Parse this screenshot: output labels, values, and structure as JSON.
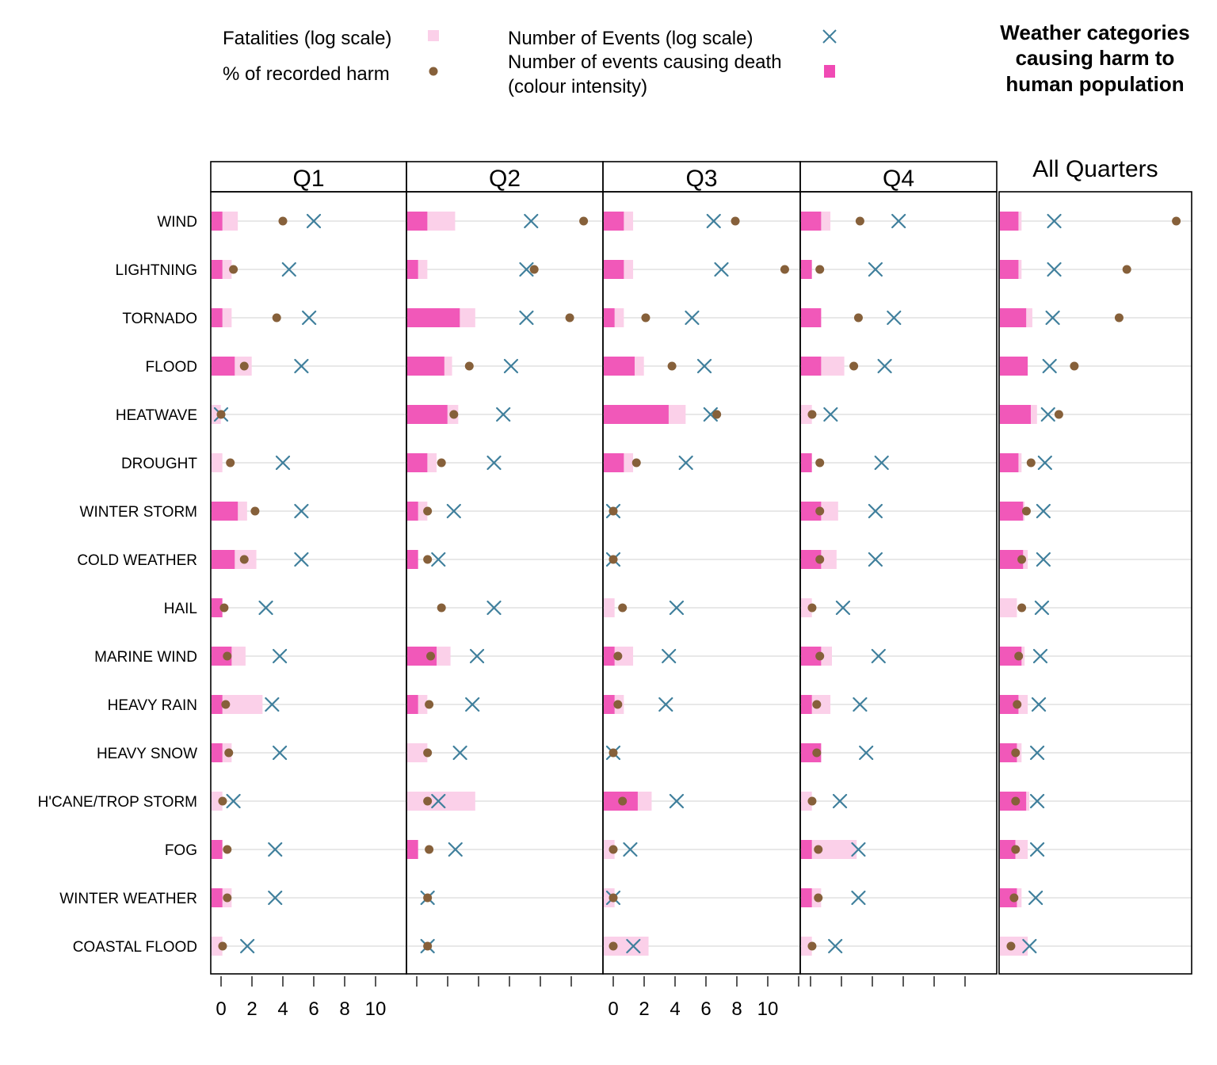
{
  "legend": {
    "fatalities": "Fatalities (log scale)",
    "pct_harm": "% of recorded harm",
    "events": "Number of Events (log scale)",
    "death_events_line1": "Number of events causing death",
    "death_events_line2": "(colour intensity)"
  },
  "title_lines": [
    "Weather categories",
    "causing harm to",
    "human population"
  ],
  "colors": {
    "bar_dark": "#f04ab4",
    "bar_light": "#fbd0e9",
    "pct_dot": "#86603a",
    "event_x": "#3f7f9c",
    "grid": "#d9d9d9"
  },
  "chart_data": {
    "type": "dot-bar panel",
    "categories": [
      "WIND",
      "LIGHTNING",
      "TORNADO",
      "FLOOD",
      "HEATWAVE",
      "DROUGHT",
      "WINTER STORM",
      "COLD WEATHER",
      "HAIL",
      "MARINE WIND",
      "HEAVY RAIN",
      "HEAVY SNOW",
      "H'CANE/TROP STORM",
      "FOG",
      "WINTER WEATHER",
      "COASTAL FLOOD"
    ],
    "x_ticks": [
      "0",
      "2",
      "4",
      "6",
      "8",
      "10"
    ],
    "xlim": [
      -0.6,
      11.8
    ],
    "panels": [
      {
        "title": "Q1",
        "fatal_light": [
          1.7,
          1.3,
          1.3,
          2.6,
          0.6,
          0.7,
          2.3,
          2.9,
          0.7,
          2.2,
          3.3,
          1.3,
          0.7,
          0.7,
          1.3,
          0.7
        ],
        "fatal_dark": [
          0.7,
          0.7,
          0.7,
          1.5,
          0.0,
          0.0,
          1.7,
          1.5,
          0.7,
          1.3,
          0.7,
          0.7,
          0.0,
          0.7,
          0.7,
          0.0
        ],
        "pct": [
          4.0,
          0.8,
          3.6,
          1.5,
          0.0,
          0.6,
          2.2,
          1.5,
          0.2,
          0.4,
          0.3,
          0.5,
          0.1,
          0.4,
          0.4,
          0.1
        ],
        "events": [
          6.0,
          4.4,
          5.7,
          5.2,
          0.0,
          4.0,
          5.2,
          5.2,
          2.9,
          3.8,
          3.3,
          3.8,
          0.8,
          3.5,
          3.5,
          1.7
        ]
      },
      {
        "title": "Q2",
        "fatal_light": [
          3.1,
          1.3,
          4.4,
          2.9,
          3.3,
          1.9,
          1.3,
          0.7,
          0.0,
          2.8,
          1.3,
          1.3,
          4.4,
          0.7,
          0.0,
          0.0
        ],
        "fatal_dark": [
          1.3,
          0.7,
          3.4,
          2.4,
          2.6,
          1.3,
          0.7,
          0.7,
          0.0,
          1.9,
          0.7,
          0.0,
          0.0,
          0.7,
          0.0,
          0.0
        ],
        "pct": [
          10.8,
          7.6,
          9.9,
          3.4,
          2.4,
          1.6,
          0.7,
          0.7,
          1.6,
          0.9,
          0.8,
          0.7,
          0.7,
          0.8,
          0.7,
          0.7
        ],
        "events": [
          7.4,
          7.1,
          7.1,
          6.1,
          5.6,
          5.0,
          2.4,
          1.4,
          5.0,
          3.9,
          3.6,
          2.8,
          1.4,
          2.5,
          0.7,
          0.7
        ]
      },
      {
        "title": "Q3",
        "fatal_light": [
          1.9,
          1.9,
          1.3,
          2.6,
          5.3,
          1.9,
          0.0,
          0.0,
          0.7,
          1.9,
          1.3,
          0.0,
          3.1,
          0.7,
          0.7,
          2.9
        ],
        "fatal_dark": [
          1.3,
          1.3,
          0.7,
          2.0,
          4.2,
          1.3,
          0.0,
          0.0,
          0.0,
          0.7,
          0.7,
          0.0,
          2.2,
          0.0,
          0.0,
          0.0
        ],
        "pct": [
          7.9,
          11.1,
          2.1,
          3.8,
          6.7,
          1.5,
          0.0,
          0.0,
          0.6,
          0.3,
          0.3,
          0.0,
          0.6,
          0.0,
          0.0,
          0.0
        ],
        "events": [
          6.5,
          7.0,
          5.1,
          5.9,
          6.3,
          4.7,
          0.0,
          0.0,
          4.1,
          3.6,
          3.4,
          0.0,
          4.1,
          1.1,
          0.0,
          1.3
        ]
      },
      {
        "title": "Q4",
        "fatal_light": [
          1.9,
          0.7,
          1.3,
          2.8,
          0.7,
          0.7,
          2.4,
          2.3,
          0.7,
          2.0,
          1.9,
          1.3,
          0.7,
          3.6,
          1.3,
          0.7
        ],
        "fatal_dark": [
          1.3,
          0.7,
          1.3,
          1.3,
          0.0,
          0.7,
          1.3,
          1.3,
          0.0,
          1.3,
          0.7,
          1.3,
          0.0,
          0.7,
          0.7,
          0.0
        ],
        "pct": [
          3.2,
          0.6,
          3.1,
          2.8,
          0.1,
          0.6,
          0.6,
          0.6,
          0.1,
          0.6,
          0.4,
          0.4,
          0.1,
          0.5,
          0.5,
          0.1
        ],
        "events": [
          5.7,
          4.2,
          5.4,
          4.8,
          1.3,
          4.6,
          4.2,
          4.2,
          2.1,
          4.4,
          3.2,
          3.6,
          1.9,
          3.1,
          3.1,
          1.6
        ]
      },
      {
        "title": "All Quarters",
        "fatal_light": [
          1.4,
          1.4,
          2.1,
          1.8,
          2.4,
          1.4,
          1.6,
          1.8,
          1.1,
          1.6,
          1.8,
          1.4,
          1.9,
          1.8,
          1.4,
          1.8
        ],
        "fatal_dark": [
          1.2,
          1.2,
          1.7,
          1.8,
          2.0,
          1.2,
          1.5,
          1.5,
          0.0,
          1.4,
          1.2,
          1.1,
          1.7,
          1.0,
          1.1,
          0.0
        ],
        "pct": [
          10.8,
          7.6,
          7.1,
          4.2,
          3.2,
          1.4,
          1.1,
          0.8,
          0.8,
          0.6,
          0.5,
          0.4,
          0.4,
          0.4,
          0.3,
          0.1
        ],
        "events": [
          2.9,
          2.9,
          2.8,
          2.6,
          2.5,
          2.3,
          2.2,
          2.2,
          2.1,
          2.0,
          1.9,
          1.8,
          1.8,
          1.8,
          1.7,
          1.3
        ]
      }
    ]
  }
}
